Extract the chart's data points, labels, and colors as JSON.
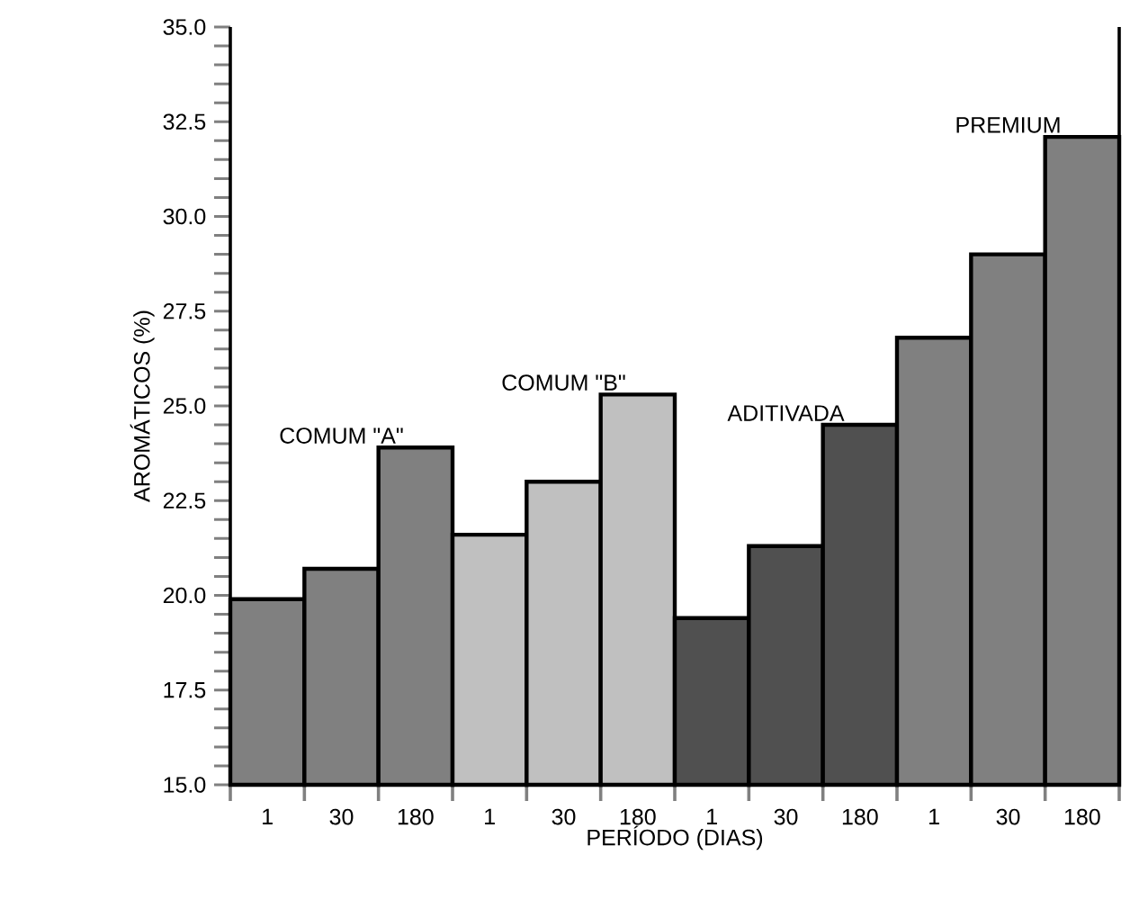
{
  "chart_data": {
    "type": "bar",
    "xlabel": "PERÍODO (DIAS)",
    "ylabel": "AROMÁTICOS (%)",
    "categories": [
      "1",
      "30",
      "180",
      "1",
      "30",
      "180",
      "1",
      "30",
      "180",
      "1",
      "30",
      "180"
    ],
    "series": [
      {
        "name": "COMUM \"A\"",
        "color": "#808080",
        "values": [
          19.9,
          20.7,
          23.9,
          null,
          null,
          null,
          null,
          null,
          null,
          null,
          null,
          null
        ]
      },
      {
        "name": "COMUM \"B\"",
        "color": "#c0c0c0",
        "values": [
          null,
          null,
          null,
          21.6,
          23.0,
          25.3,
          null,
          null,
          null,
          null,
          null,
          null
        ]
      },
      {
        "name": "ADITIVADA",
        "color": "#505050",
        "values": [
          null,
          null,
          null,
          null,
          null,
          null,
          19.4,
          21.3,
          24.5,
          null,
          null,
          null
        ]
      },
      {
        "name": "PREMIUM",
        "color": "#808080",
        "values": [
          null,
          null,
          null,
          null,
          null,
          null,
          null,
          null,
          null,
          26.8,
          29.0,
          32.1
        ]
      }
    ],
    "ylim": [
      15,
      35
    ],
    "yticks": [
      {
        "value": 15,
        "label": "15.0"
      },
      {
        "value": 17.5,
        "label": "17.5"
      },
      {
        "value": 20,
        "label": "20.0"
      },
      {
        "value": 22.5,
        "label": "22.5"
      },
      {
        "value": 25,
        "label": "25.0"
      },
      {
        "value": 27.5,
        "label": "27.5"
      },
      {
        "value": 30,
        "label": "30.0"
      },
      {
        "value": 32.5,
        "label": "32.5"
      },
      {
        "value": 35,
        "label": "35.0"
      }
    ],
    "grid": false,
    "legend": false
  }
}
